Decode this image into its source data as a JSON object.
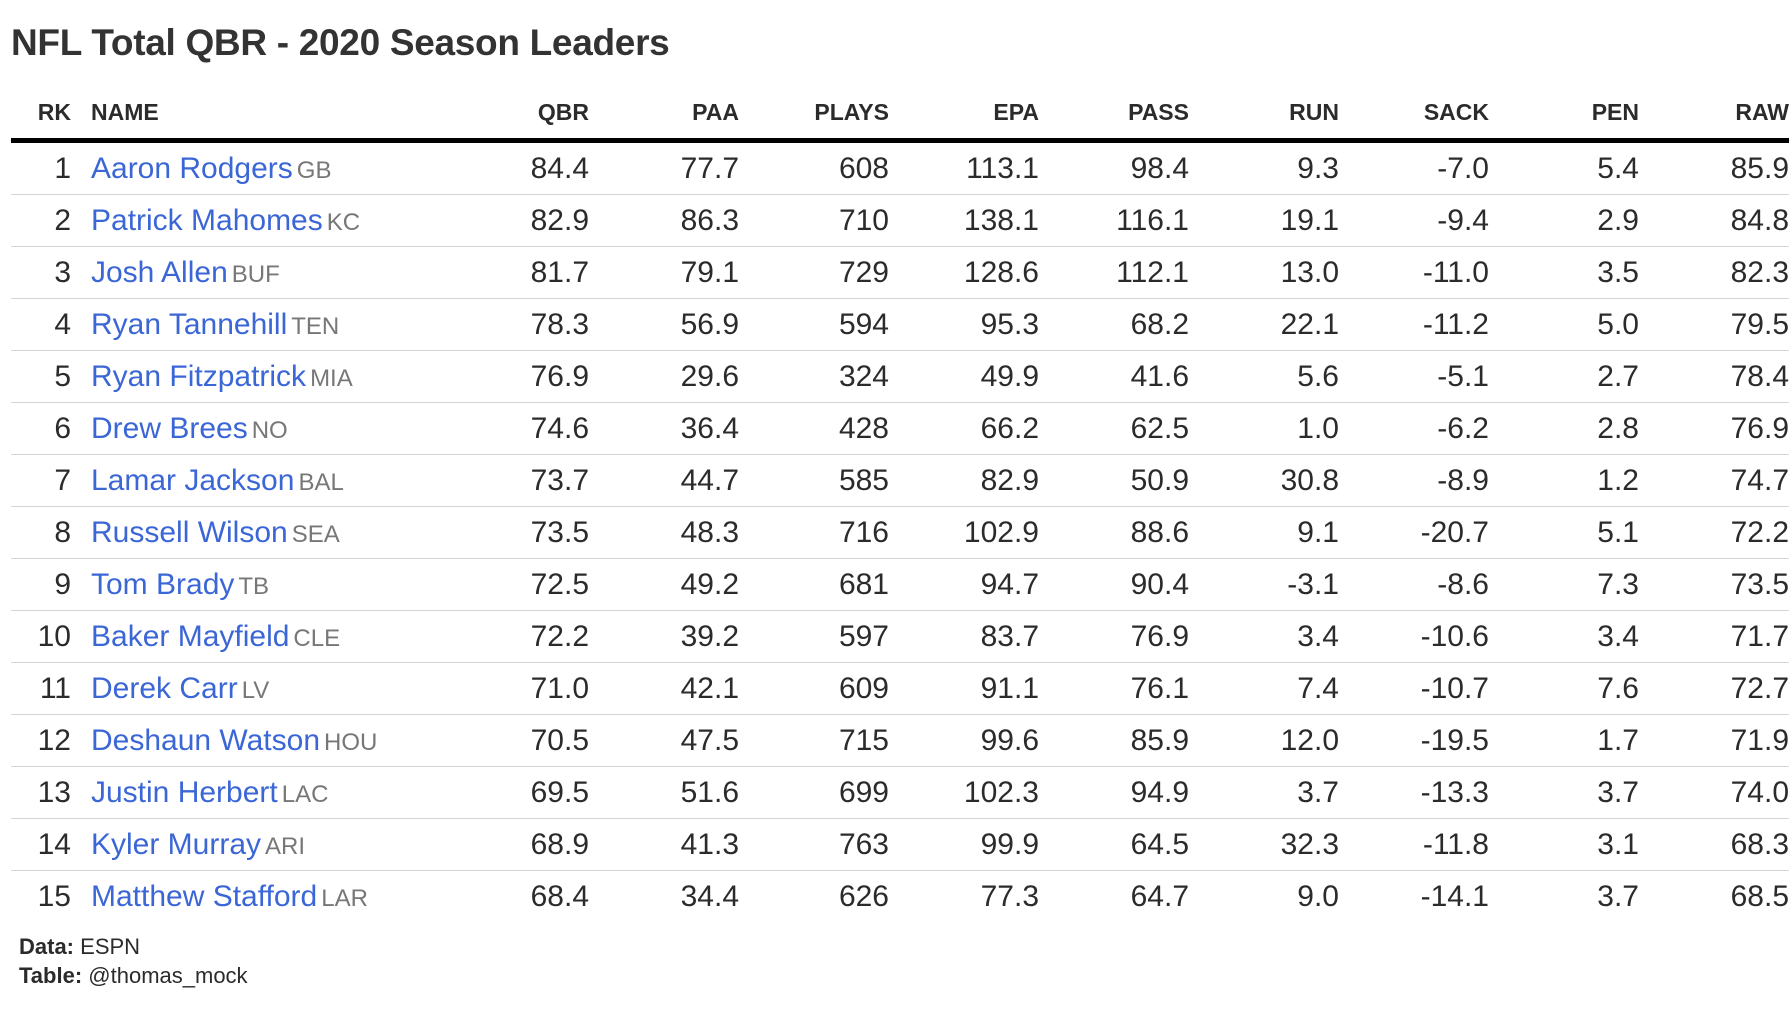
{
  "title": "NFL Total QBR - 2020 Season Leaders",
  "columns": [
    "RK",
    "NAME",
    "QBR",
    "PAA",
    "PLAYS",
    "EPA",
    "PASS",
    "RUN",
    "SACK",
    "PEN",
    "RAW"
  ],
  "rows": [
    {
      "rk": "1",
      "name": "Aaron Rodgers",
      "team": "GB",
      "qbr": "84.4",
      "paa": "77.7",
      "plays": "608",
      "epa": "113.1",
      "pass": "98.4",
      "run": "9.3",
      "sack": "-7.0",
      "pen": "5.4",
      "raw": "85.9"
    },
    {
      "rk": "2",
      "name": "Patrick Mahomes",
      "team": "KC",
      "qbr": "82.9",
      "paa": "86.3",
      "plays": "710",
      "epa": "138.1",
      "pass": "116.1",
      "run": "19.1",
      "sack": "-9.4",
      "pen": "2.9",
      "raw": "84.8"
    },
    {
      "rk": "3",
      "name": "Josh Allen",
      "team": "BUF",
      "qbr": "81.7",
      "paa": "79.1",
      "plays": "729",
      "epa": "128.6",
      "pass": "112.1",
      "run": "13.0",
      "sack": "-11.0",
      "pen": "3.5",
      "raw": "82.3"
    },
    {
      "rk": "4",
      "name": "Ryan Tannehill",
      "team": "TEN",
      "qbr": "78.3",
      "paa": "56.9",
      "plays": "594",
      "epa": "95.3",
      "pass": "68.2",
      "run": "22.1",
      "sack": "-11.2",
      "pen": "5.0",
      "raw": "79.5"
    },
    {
      "rk": "5",
      "name": "Ryan Fitzpatrick",
      "team": "MIA",
      "qbr": "76.9",
      "paa": "29.6",
      "plays": "324",
      "epa": "49.9",
      "pass": "41.6",
      "run": "5.6",
      "sack": "-5.1",
      "pen": "2.7",
      "raw": "78.4"
    },
    {
      "rk": "6",
      "name": "Drew Brees",
      "team": "NO",
      "qbr": "74.6",
      "paa": "36.4",
      "plays": "428",
      "epa": "66.2",
      "pass": "62.5",
      "run": "1.0",
      "sack": "-6.2",
      "pen": "2.8",
      "raw": "76.9"
    },
    {
      "rk": "7",
      "name": "Lamar Jackson",
      "team": "BAL",
      "qbr": "73.7",
      "paa": "44.7",
      "plays": "585",
      "epa": "82.9",
      "pass": "50.9",
      "run": "30.8",
      "sack": "-8.9",
      "pen": "1.2",
      "raw": "74.7"
    },
    {
      "rk": "8",
      "name": "Russell Wilson",
      "team": "SEA",
      "qbr": "73.5",
      "paa": "48.3",
      "plays": "716",
      "epa": "102.9",
      "pass": "88.6",
      "run": "9.1",
      "sack": "-20.7",
      "pen": "5.1",
      "raw": "72.2"
    },
    {
      "rk": "9",
      "name": "Tom Brady",
      "team": "TB",
      "qbr": "72.5",
      "paa": "49.2",
      "plays": "681",
      "epa": "94.7",
      "pass": "90.4",
      "run": "-3.1",
      "sack": "-8.6",
      "pen": "7.3",
      "raw": "73.5"
    },
    {
      "rk": "10",
      "name": "Baker Mayfield",
      "team": "CLE",
      "qbr": "72.2",
      "paa": "39.2",
      "plays": "597",
      "epa": "83.7",
      "pass": "76.9",
      "run": "3.4",
      "sack": "-10.6",
      "pen": "3.4",
      "raw": "71.7"
    },
    {
      "rk": "11",
      "name": "Derek Carr",
      "team": "LV",
      "qbr": "71.0",
      "paa": "42.1",
      "plays": "609",
      "epa": "91.1",
      "pass": "76.1",
      "run": "7.4",
      "sack": "-10.7",
      "pen": "7.6",
      "raw": "72.7"
    },
    {
      "rk": "12",
      "name": "Deshaun Watson",
      "team": "HOU",
      "qbr": "70.5",
      "paa": "47.5",
      "plays": "715",
      "epa": "99.6",
      "pass": "85.9",
      "run": "12.0",
      "sack": "-19.5",
      "pen": "1.7",
      "raw": "71.9"
    },
    {
      "rk": "13",
      "name": "Justin Herbert",
      "team": "LAC",
      "qbr": "69.5",
      "paa": "51.6",
      "plays": "699",
      "epa": "102.3",
      "pass": "94.9",
      "run": "3.7",
      "sack": "-13.3",
      "pen": "3.7",
      "raw": "74.0"
    },
    {
      "rk": "14",
      "name": "Kyler Murray",
      "team": "ARI",
      "qbr": "68.9",
      "paa": "41.3",
      "plays": "763",
      "epa": "99.9",
      "pass": "64.5",
      "run": "32.3",
      "sack": "-11.8",
      "pen": "3.1",
      "raw": "68.3"
    },
    {
      "rk": "15",
      "name": "Matthew Stafford",
      "team": "LAR",
      "qbr": "68.4",
      "paa": "34.4",
      "plays": "626",
      "epa": "77.3",
      "pass": "64.7",
      "run": "9.0",
      "sack": "-14.1",
      "pen": "3.7",
      "raw": "68.5"
    }
  ],
  "footer": {
    "data_label": "Data:",
    "data_value": "ESPN",
    "table_label": "Table:",
    "table_value": "@thomas_mock"
  },
  "colors": {
    "name_link": "#3b66d6",
    "team_abbr": "#777777",
    "header_rule": "#000000",
    "row_rule": "#d3d3d3"
  }
}
